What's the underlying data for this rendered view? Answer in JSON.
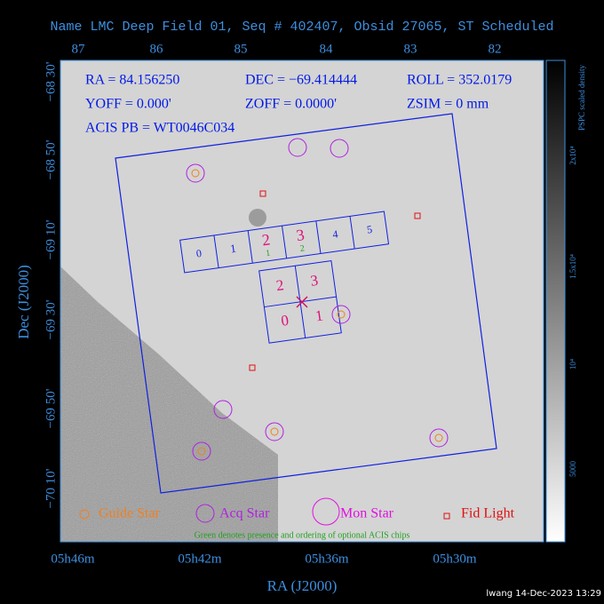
{
  "title": "Name LMC Deep Field 01, Seq # 402407, Obsid 27065, ST Scheduled",
  "axes": {
    "top_ticks": [
      "87",
      "86",
      "85",
      "84",
      "83",
      "82"
    ],
    "left_ticks": [
      "−68 30'",
      "−68 50'",
      "−69 10'",
      "−69 30'",
      "−69 50'",
      "−70 10'"
    ],
    "bottom_ticks": [
      "05h46m",
      "05h42m",
      "05h36m",
      "05h30m"
    ],
    "x_label": "RA (J2000)",
    "y_label": "Dec (J2000)"
  },
  "info": [
    "RA = 84.156250",
    "DEC = −69.414444",
    "ROLL = 352.0179",
    "YOFF = 0.000'",
    "ZOFF = 0.0000'",
    "ZSIM = 0 mm",
    "ACIS PB = WT0046C034"
  ],
  "chips": {
    "row": [
      "0",
      "1",
      "2",
      "3",
      "4",
      "5"
    ],
    "square": [
      "2",
      "3",
      "0",
      "1"
    ],
    "optional": [
      "1",
      "2"
    ]
  },
  "legend": [
    "Guide Star",
    "Acq Star",
    "Mon Star",
    "Fid Light"
  ],
  "note": "Green denotes presence and ordering of optional ACIS chips",
  "colorbar": {
    "label": "PSPC scaled density",
    "ticks": [
      "2x10⁴",
      "1.5x10⁴",
      "10⁴",
      "5000"
    ]
  },
  "footer": "lwang 14-Dec-2023 13:29"
}
